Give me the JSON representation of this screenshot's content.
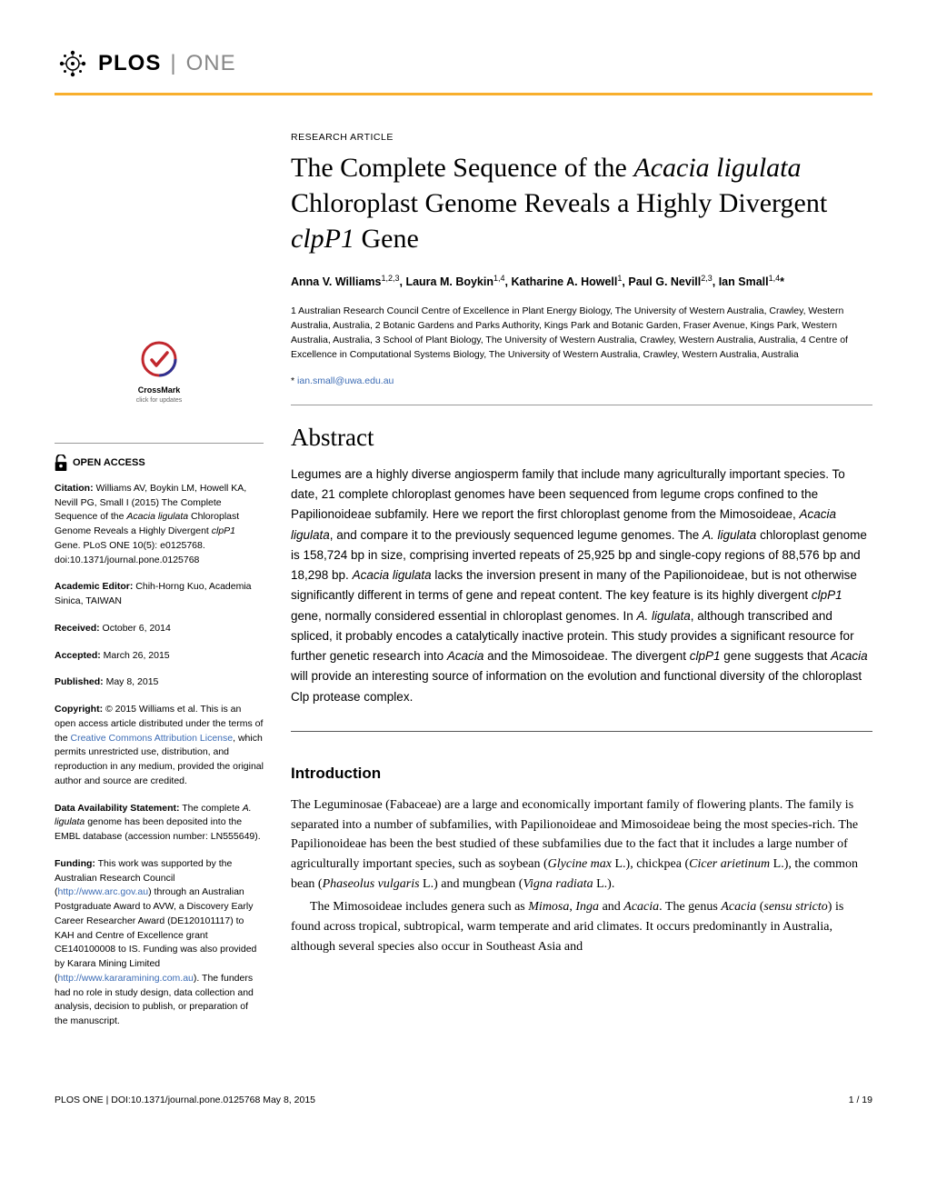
{
  "header": {
    "logo_plos": "PLOS",
    "logo_one": "ONE"
  },
  "article": {
    "type": "RESEARCH ARTICLE",
    "title_pre": "The Complete Sequence of the ",
    "title_em1": "Acacia ligulata",
    "title_mid": " Chloroplast Genome Reveals a Highly Divergent ",
    "title_em2": "clpP1",
    "title_post": " Gene",
    "authors_html": "Anna V. Williams<sup>1,2,3</sup>, Laura M. Boykin<sup>1,4</sup>, Katharine A. Howell<sup>1</sup>, Paul G. Nevill<sup>2,3</sup>, Ian Small<sup>1,4</sup>*",
    "affiliations": "1 Australian Research Council Centre of Excellence in Plant Energy Biology, The University of Western Australia, Crawley, Western Australia, Australia, 2 Botanic Gardens and Parks Authority, Kings Park and Botanic Garden, Fraser Avenue, Kings Park, Western Australia, Australia, 3 School of Plant Biology, The University of Western Australia, Crawley, Western Australia, Australia, 4 Centre of Excellence in Computational Systems Biology, The University of Western Australia, Crawley, Western Australia, Australia",
    "corr_star": "*",
    "corr_email": "ian.small@uwa.edu.au"
  },
  "abstract": {
    "heading": "Abstract",
    "text_html": "Legumes are a highly diverse angiosperm family that include many agriculturally important species. To date, 21 complete chloroplast genomes have been sequenced from legume crops confined to the Papilionoideae subfamily. Here we report the first chloroplast genome from the Mimosoideae, <em>Acacia ligulata</em>, and compare it to the previously sequenced legume genomes. The <em>A. ligulata</em> chloroplast genome is 158,724 bp in size, comprising inverted repeats of 25,925 bp and single-copy regions of 88,576 bp and 18,298 bp. <em>Acacia ligulata</em> lacks the inversion present in many of the Papilionoideae, but is not otherwise significantly different in terms of gene and repeat content. The key feature is its highly divergent <em>clpP1</em> gene, normally considered essential in chloroplast genomes. In <em>A. ligulata</em>, although transcribed and spliced, it probably encodes a catalytically inactive protein. This study provides a significant resource for further genetic research into <em>Acacia</em> and the Mimosoideae. The divergent <em>clpP1</em> gene suggests that <em>Acacia</em> will provide an interesting source of information on the evolution and functional diversity of the chloroplast Clp protease complex."
  },
  "intro": {
    "heading": "Introduction",
    "p1_html": "The Leguminosae (Fabaceae) are a large and economically important family of flowering plants. The family is separated into a number of subfamilies, with Papilionoideae and Mimosoideae being the most species-rich. The Papilionoideae has been the best studied of these subfamilies due to the fact that it includes a large number of agriculturally important species, such as soybean (<em>Glycine max</em> L.), chickpea (<em>Cicer arietinum</em> L.), the common bean (<em>Phaseolus vulgaris</em> L.) and mungbean (<em>Vigna radiata</em> L.).",
    "p2_html": "The Mimosoideae includes genera such as <em>Mimosa</em>, <em>Inga</em> and <em>Acacia</em>. The genus <em>Acacia</em> (<em>sensu stricto</em>) is found across tropical, subtropical, warm temperate and arid climates. It occurs predominantly in Australia, although several species also occur in Southeast Asia and"
  },
  "crossmark": {
    "label": "CrossMark",
    "sub": "click for updates"
  },
  "sidebar": {
    "open_access": "OPEN ACCESS",
    "citation_label": "Citation:",
    "citation_html": " Williams AV, Boykin LM, Howell KA, Nevill PG, Small I (2015) The Complete Sequence of the <em>Acacia ligulata</em> Chloroplast Genome Reveals a Highly Divergent <em>clpP1</em> Gene. PLoS ONE 10(5): e0125768. doi:10.1371/journal.pone.0125768",
    "editor_label": "Academic Editor:",
    "editor_text": " Chih-Horng Kuo, Academia Sinica, TAIWAN",
    "received_label": "Received:",
    "received_text": " October 6, 2014",
    "accepted_label": "Accepted:",
    "accepted_text": " March 26, 2015",
    "published_label": "Published:",
    "published_text": " May 8, 2015",
    "copyright_label": "Copyright:",
    "copyright_pre": " © 2015 Williams et al. This is an open access article distributed under the terms of the ",
    "copyright_link": "Creative Commons Attribution License",
    "copyright_post": ", which permits unrestricted use, distribution, and reproduction in any medium, provided the original author and source are credited.",
    "data_label": "Data Availability Statement:",
    "data_html": " The complete <em>A. ligulata</em> genome has been deposited into the EMBL database (accession number: LN555649).",
    "funding_label": "Funding:",
    "funding_pre": " This work was supported by the Australian Research Council (",
    "funding_link1": "http://www.arc.gov.au",
    "funding_mid": ") through an Australian Postgraduate Award to AVW, a Discovery Early Career Researcher Award (DE120101117) to KAH and Centre of Excellence grant CE140100008 to IS. Funding was also provided by Karara Mining Limited (",
    "funding_link2": "http://www.kararamining.com.au",
    "funding_post": "). The funders had no role in study design, data collection and analysis, decision to publish, or preparation of the manuscript."
  },
  "footer": {
    "left": "PLOS ONE | DOI:10.1371/journal.pone.0125768   May 8, 2015",
    "right": "1 / 19"
  },
  "colors": {
    "accent": "#f8af2d",
    "link": "#3c6cb5",
    "crossmark_red": "#c1272d",
    "crossmark_blue": "#2e3192"
  }
}
